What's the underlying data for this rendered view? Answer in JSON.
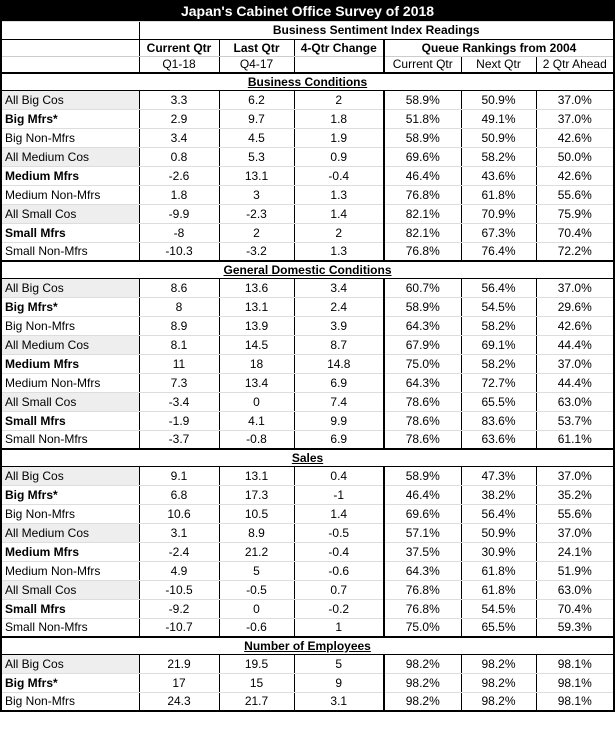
{
  "title": "Japan's Cabinet Office Survey of 2018",
  "subtitle": "Business Sentiment Index Readings",
  "header": {
    "columns": [
      "Current Qtr",
      "Last Qtr",
      "4-Qtr Change"
    ],
    "periods": [
      "Q1-18",
      "Q4-17"
    ],
    "queue": {
      "title": "Queue Rankings from 2004",
      "columns": [
        "Current Qtr",
        "Next Qtr",
        "2 Qtr Ahead"
      ]
    }
  },
  "sections": [
    {
      "title": "Business Conditions",
      "rows": [
        [
          "All Big Cos",
          "3.3",
          "6.2",
          "2",
          "58.9%",
          "50.9%",
          "37.0%"
        ],
        [
          "Big Mfrs*",
          "2.9",
          "9.7",
          "1.8",
          "51.8%",
          "49.1%",
          "37.0%"
        ],
        [
          "Big Non-Mfrs",
          "3.4",
          "4.5",
          "1.9",
          "58.9%",
          "50.9%",
          "42.6%"
        ],
        [
          "All Medium Cos",
          "0.8",
          "5.3",
          "0.9",
          "69.6%",
          "58.2%",
          "50.0%"
        ],
        [
          "Medium Mfrs",
          "-2.6",
          "13.1",
          "-0.4",
          "46.4%",
          "43.6%",
          "42.6%"
        ],
        [
          "Medium Non-Mfrs",
          "1.8",
          "3",
          "1.3",
          "76.8%",
          "61.8%",
          "55.6%"
        ],
        [
          "All Small Cos",
          "-9.9",
          "-2.3",
          "1.4",
          "82.1%",
          "70.9%",
          "75.9%"
        ],
        [
          "Small Mfrs",
          "-8",
          "2",
          "2",
          "82.1%",
          "67.3%",
          "70.4%"
        ],
        [
          "Small Non-Mfrs",
          "-10.3",
          "-3.2",
          "1.3",
          "76.8%",
          "76.4%",
          "72.2%"
        ]
      ]
    },
    {
      "title": "General Domestic Conditions",
      "rows": [
        [
          "All Big Cos",
          "8.6",
          "13.6",
          "3.4",
          "60.7%",
          "56.4%",
          "37.0%"
        ],
        [
          "Big Mfrs*",
          "8",
          "13.1",
          "2.4",
          "58.9%",
          "54.5%",
          "29.6%"
        ],
        [
          "Big Non-Mfrs",
          "8.9",
          "13.9",
          "3.9",
          "64.3%",
          "58.2%",
          "42.6%"
        ],
        [
          "All Medium Cos",
          "8.1",
          "14.5",
          "8.7",
          "67.9%",
          "69.1%",
          "44.4%"
        ],
        [
          "Medium Mfrs",
          "11",
          "18",
          "14.8",
          "75.0%",
          "58.2%",
          "37.0%"
        ],
        [
          "Medium Non-Mfrs",
          "7.3",
          "13.4",
          "6.9",
          "64.3%",
          "72.7%",
          "44.4%"
        ],
        [
          "All Small Cos",
          "-3.4",
          "0",
          "7.4",
          "78.6%",
          "65.5%",
          "63.0%"
        ],
        [
          "Small Mfrs",
          "-1.9",
          "4.1",
          "9.9",
          "78.6%",
          "83.6%",
          "53.7%"
        ],
        [
          "Small Non-Mfrs",
          "-3.7",
          "-0.8",
          "6.9",
          "78.6%",
          "63.6%",
          "61.1%"
        ]
      ]
    },
    {
      "title": "Sales",
      "rows": [
        [
          "All Big Cos",
          "9.1",
          "13.1",
          "0.4",
          "58.9%",
          "47.3%",
          "37.0%"
        ],
        [
          "Big Mfrs*",
          "6.8",
          "17.3",
          "-1",
          "46.4%",
          "38.2%",
          "35.2%"
        ],
        [
          "Big Non-Mfrs",
          "10.6",
          "10.5",
          "1.4",
          "69.6%",
          "56.4%",
          "55.6%"
        ],
        [
          "All Medium Cos",
          "3.1",
          "8.9",
          "-0.5",
          "57.1%",
          "50.9%",
          "37.0%"
        ],
        [
          "Medium Mfrs",
          "-2.4",
          "21.2",
          "-0.4",
          "37.5%",
          "30.9%",
          "24.1%"
        ],
        [
          "Medium Non-Mfrs",
          "4.9",
          "5",
          "-0.6",
          "64.3%",
          "61.8%",
          "51.9%"
        ],
        [
          "All Small Cos",
          "-10.5",
          "-0.5",
          "0.7",
          "76.8%",
          "61.8%",
          "63.0%"
        ],
        [
          "Small Mfrs",
          "-9.2",
          "0",
          "-0.2",
          "76.8%",
          "54.5%",
          "70.4%"
        ],
        [
          "Small Non-Mfrs",
          "-10.7",
          "-0.6",
          "1",
          "75.0%",
          "65.5%",
          "59.3%"
        ]
      ]
    },
    {
      "title": "Number of Employees",
      "rows": [
        [
          "All Big Cos",
          "21.9",
          "19.5",
          "5",
          "98.2%",
          "98.2%",
          "98.1%"
        ],
        [
          "Big Mfrs*",
          "17",
          "15",
          "9",
          "98.2%",
          "98.2%",
          "98.1%"
        ],
        [
          "Big Non-Mfrs",
          "24.3",
          "21.7",
          "3.1",
          "98.2%",
          "98.2%",
          "98.1%"
        ]
      ]
    }
  ]
}
